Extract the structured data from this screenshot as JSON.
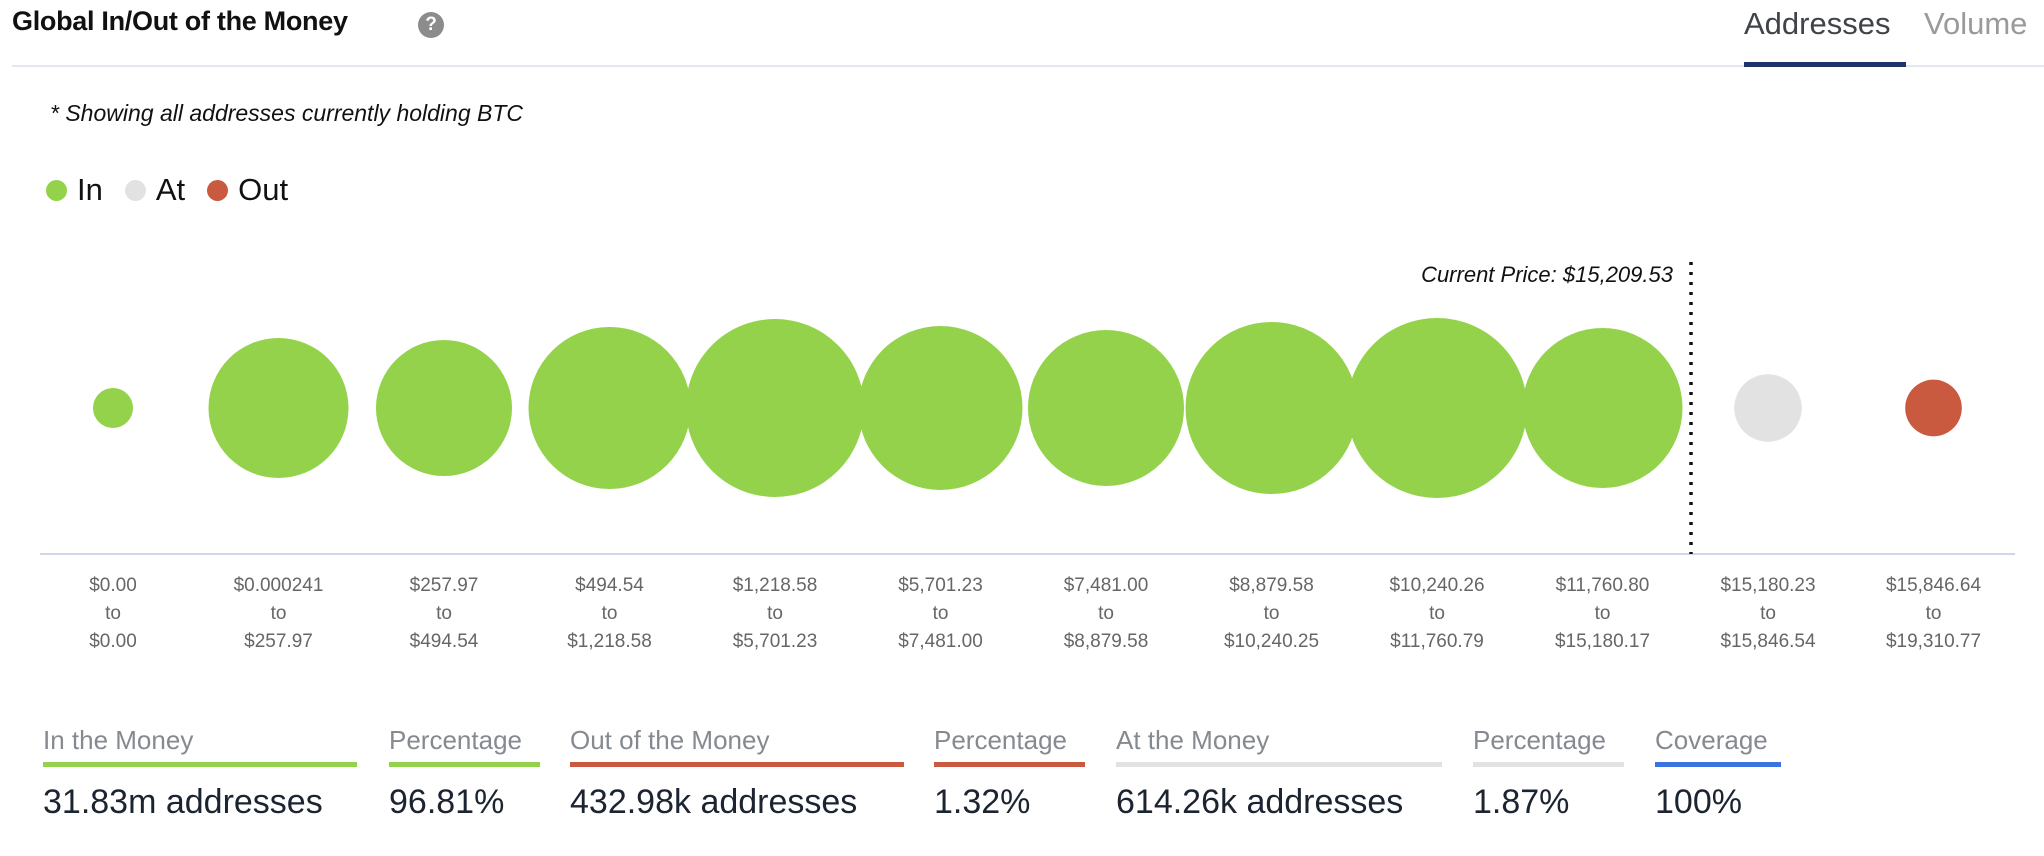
{
  "header": {
    "title": "Global In/Out of the Money",
    "help_icon": "?",
    "tabs": [
      {
        "label": "Addresses",
        "active": true
      },
      {
        "label": "Volume",
        "active": false
      }
    ]
  },
  "note": "* Showing all addresses currently holding BTC",
  "colors": {
    "in": "#93d24a",
    "at": "#e2e2e2",
    "out": "#c95a40",
    "coverage": "#3b74e0",
    "tab_active": "#21336b"
  },
  "chart_data": {
    "type": "bubble",
    "legend": [
      {
        "label": "In",
        "status": "in"
      },
      {
        "label": "At",
        "status": "at"
      },
      {
        "label": "Out",
        "status": "out"
      }
    ],
    "current_price_label": "Current Price: $15,209.53",
    "current_price": 15209.53,
    "buckets": [
      {
        "from": "$0.00",
        "to": "$0.00",
        "status": "in",
        "addresses_k_est": 216
      },
      {
        "from": "$0.000241",
        "to": "$257.97",
        "status": "in",
        "addresses_k_est": 2646
      },
      {
        "from": "$257.97",
        "to": "$494.54",
        "status": "in",
        "addresses_k_est": 2497
      },
      {
        "from": "$494.54",
        "to": "$1,218.58",
        "status": "in",
        "addresses_k_est": 3543
      },
      {
        "from": "$1,218.58",
        "to": "$5,701.23",
        "status": "in",
        "addresses_k_est": 4277
      },
      {
        "from": "$5,701.23",
        "to": "$7,481.00",
        "status": "in",
        "addresses_k_est": 3631
      },
      {
        "from": "$7,481.00",
        "to": "$8,879.58",
        "status": "in",
        "addresses_k_est": 3285
      },
      {
        "from": "$8,879.58",
        "to": "$10,240.25",
        "status": "in",
        "addresses_k_est": 3994
      },
      {
        "from": "$10,240.26",
        "to": "$11,760.79",
        "status": "in",
        "addresses_k_est": 4374
      },
      {
        "from": "$11,760.80",
        "to": "$15,180.17",
        "status": "in",
        "addresses_k_est": 3456
      },
      {
        "from": "$15,180.23",
        "to": "$15,846.54",
        "status": "at",
        "addresses_k_est": 614.26
      },
      {
        "from": "$15,846.64",
        "to": "$19,310.77",
        "status": "out",
        "addresses_k_est": 432.98
      }
    ],
    "range_joiner": "to"
  },
  "footer": [
    {
      "label": "In the Money",
      "value": "31.83m addresses",
      "color": "#93d24a"
    },
    {
      "label": "Percentage",
      "value": "96.81%",
      "color": "#93d24a"
    },
    {
      "label": "Out of the Money",
      "value": "432.98k addresses",
      "color": "#c95a40"
    },
    {
      "label": "Percentage",
      "value": "1.32%",
      "color": "#c95a40"
    },
    {
      "label": "At the Money",
      "value": "614.26k addresses",
      "color": "#e2e2e2"
    },
    {
      "label": "Percentage",
      "value": "1.87%",
      "color": "#e2e2e2"
    },
    {
      "label": "Coverage",
      "value": "100%",
      "color": "#3b74e0"
    }
  ]
}
